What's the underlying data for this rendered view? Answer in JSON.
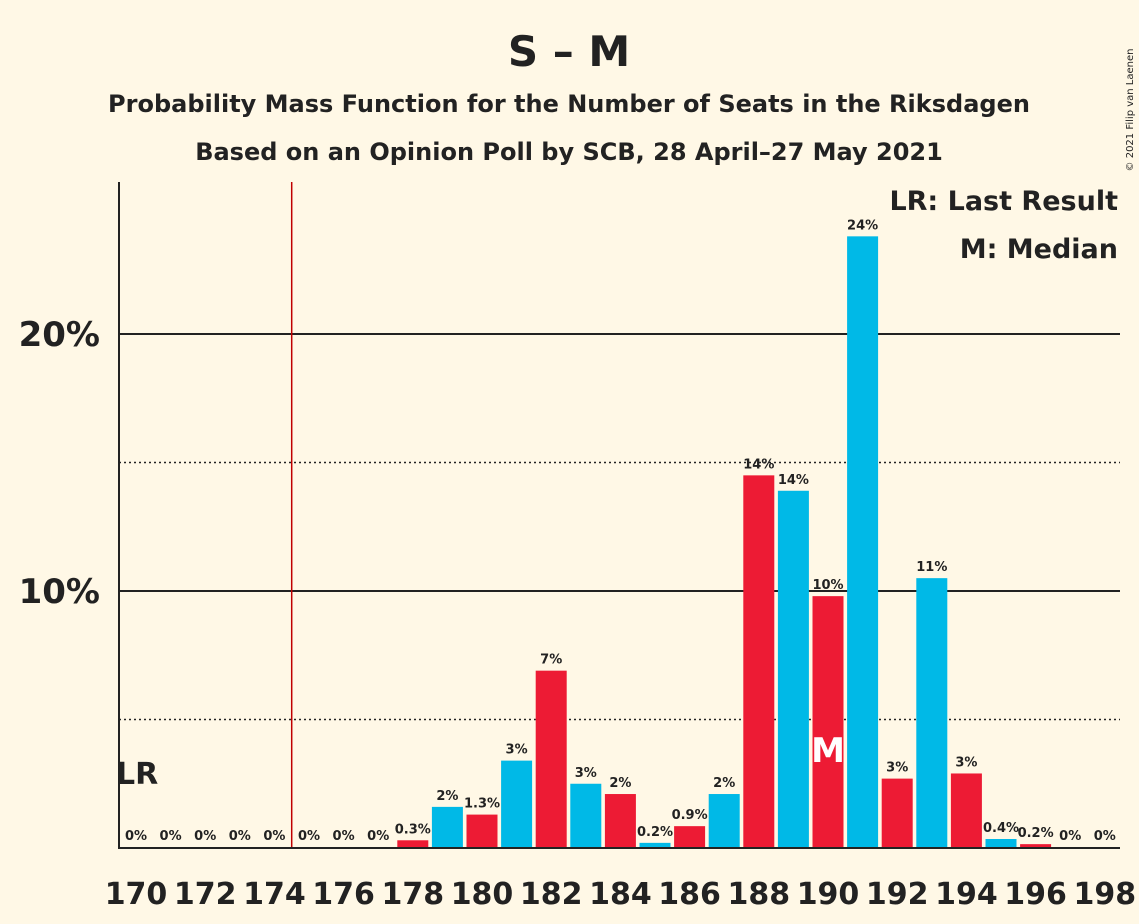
{
  "title": "S – M",
  "subtitle1": "Probability Mass Function for the Number of Seats in the Riksdagen",
  "subtitle2": "Based on an Opinion Poll by SCB, 28 April–27 May 2021",
  "copyright": "© 2021 Filip van Laenen",
  "legend": {
    "lr": "LR: Last Result",
    "median": "M: Median"
  },
  "lr_marker": "LR",
  "median_marker": "M",
  "colors": {
    "background": "#FFF8E6",
    "red": "#ED1B34",
    "blue": "#00B9E7",
    "last_result_line": "#C00000"
  },
  "chart_data": {
    "type": "bar",
    "x": [
      170,
      171,
      172,
      173,
      174,
      175,
      176,
      177,
      178,
      179,
      180,
      181,
      182,
      183,
      184,
      185,
      186,
      187,
      188,
      189,
      190,
      191,
      192,
      193,
      194,
      195,
      196,
      197,
      198
    ],
    "values": [
      0,
      0,
      0,
      0,
      0,
      0,
      0,
      0,
      0.3,
      1.6,
      1.3,
      3.4,
      6.9,
      2.5,
      2.1,
      0.2,
      0.85,
      2.1,
      14.5,
      13.9,
      9.8,
      23.8,
      2.7,
      10.5,
      2.9,
      0.35,
      0.15,
      0,
      0
    ],
    "labels": [
      "0%",
      "0%",
      "0%",
      "0%",
      "0%",
      "0%",
      "0%",
      "0%",
      "0.3%",
      "2%",
      "1.3%",
      "3%",
      "7%",
      "3%",
      "2%",
      "0.2%",
      "0.9%",
      "2%",
      "14%",
      "14%",
      "10%",
      "24%",
      "3%",
      "11%",
      "3%",
      "0.4%",
      "0.2%",
      "0%",
      "0%"
    ],
    "bar_colors": [
      "#ED1B34",
      "#00B9E7",
      "#ED1B34",
      "#00B9E7",
      "#ED1B34",
      "#00B9E7",
      "#ED1B34",
      "#00B9E7",
      "#ED1B34",
      "#00B9E7",
      "#ED1B34",
      "#00B9E7",
      "#ED1B34",
      "#00B9E7",
      "#ED1B34",
      "#00B9E7",
      "#ED1B34",
      "#00B9E7",
      "#ED1B34",
      "#00B9E7",
      "#ED1B34",
      "#00B9E7",
      "#ED1B34",
      "#00B9E7",
      "#ED1B34",
      "#00B9E7",
      "#ED1B34",
      "#00B9E7",
      "#ED1B34"
    ],
    "xticks": [
      170,
      172,
      174,
      176,
      178,
      180,
      182,
      184,
      186,
      188,
      190,
      192,
      194,
      196,
      198
    ],
    "yticks": [
      {
        "value": 10,
        "label": "10%"
      },
      {
        "value": 20,
        "label": "20%"
      }
    ],
    "dotted_gridlines": [
      5,
      15
    ],
    "ylim": [
      0,
      26
    ],
    "last_result_seat": 174.5,
    "median_seat": 190
  }
}
